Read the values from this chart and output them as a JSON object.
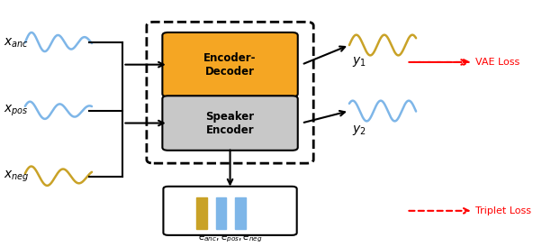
{
  "fig_width": 5.92,
  "fig_height": 2.74,
  "dpi": 100,
  "blue_color": "#7EB6E8",
  "gold_color": "#C9A227",
  "orange_box_color": "#F5A623",
  "gray_box_color": "#C8C8C8",
  "red_color": "#FF0000",
  "black": "#000000",
  "white": "#FFFFFF",
  "encoder_decoder_label": "Encoder-\nDecoder",
  "speaker_encoder_label": "Speaker\nEncoder",
  "vae_loss_label": "VAE Loss",
  "triplet_loss_label": "Triplet Loss",
  "x_anc_label": "$x_{anc}$",
  "x_pos_label": "$x_{pos}$",
  "x_neg_label": "$x_{neg}$",
  "y1_label": "$y_1$",
  "y2_label": "$y_2$",
  "embed_label": "$e_{anc}, e_{pos}, e_{neg}$"
}
